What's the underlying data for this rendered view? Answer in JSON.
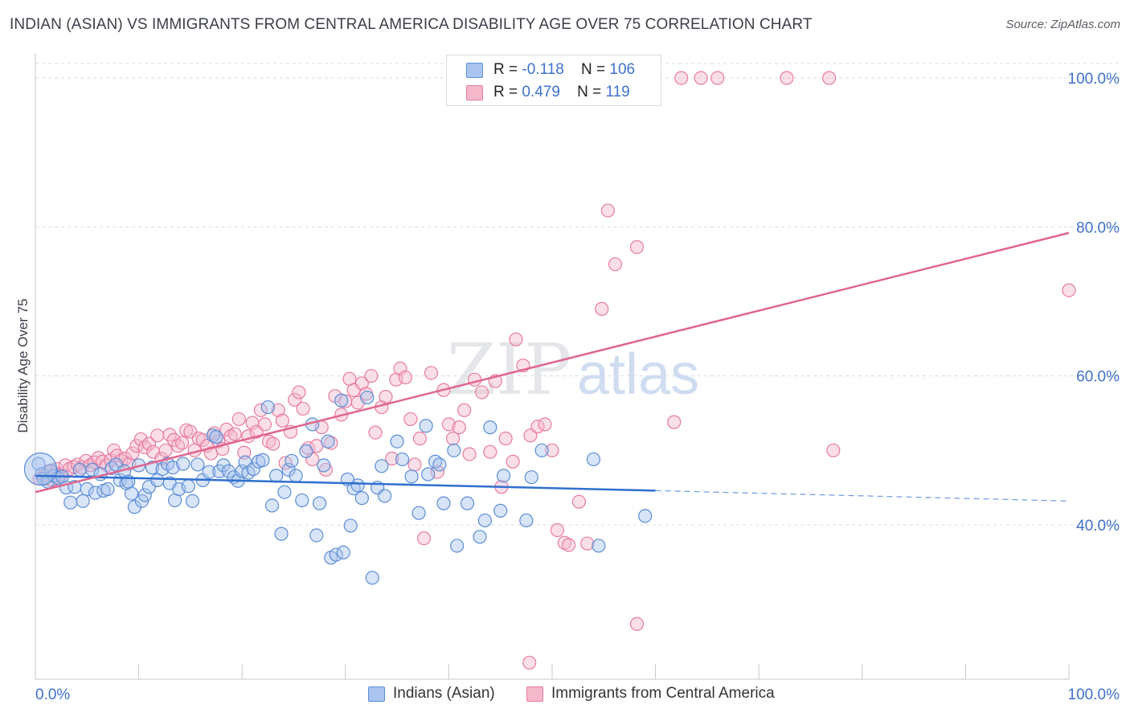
{
  "title": "INDIAN (ASIAN) VS IMMIGRANTS FROM CENTRAL AMERICA DISABILITY AGE OVER 75 CORRELATION CHART",
  "source": "Source: ZipAtlas.com",
  "watermark": {
    "zip": "ZIP",
    "atlas": "atlas"
  },
  "legend": {
    "rows": [
      {
        "r_label": "R =",
        "r_value": "-0.118",
        "n_label": "N =",
        "n_value": "106"
      },
      {
        "r_label": "R =",
        "r_value": "0.479",
        "n_label": "N =",
        "n_value": "119"
      }
    ]
  },
  "bottom_legend": [
    "Indians (Asian)",
    "Immigrants from Central America"
  ],
  "colors": {
    "blue_fill": "#a9c4ee",
    "blue_stroke": "#5b8ed6",
    "blue_line": "#2f6fcf",
    "pink_fill": "#f5b8cb",
    "pink_stroke": "#e87ba0",
    "pink_line": "#e0678f",
    "axis_label": "#3f72c9",
    "grid": "#d9dbe0"
  },
  "chart_data": {
    "type": "scatter",
    "title": "INDIAN (ASIAN) VS IMMIGRANTS FROM CENTRAL AMERICA DISABILITY AGE OVER 75 CORRELATION CHART",
    "xlabel": "",
    "ylabel": "Disability Age Over 75",
    "xlim": [
      0,
      100
    ],
    "ylim": [
      20,
      104
    ],
    "x_tick_labels": [
      "0.0%",
      "100.0%"
    ],
    "y_ticks": [
      40,
      60,
      80,
      100
    ],
    "y_tick_labels": [
      "40.0%",
      "60.0%",
      "80.0%",
      "100.0%"
    ],
    "grid": true,
    "legend_position": "top-center",
    "series": [
      {
        "name": "Indians (Asian)",
        "color": "#5b8ed6",
        "r": -0.118,
        "n": 106,
        "trend": {
          "x0": 0,
          "y0": 46.6,
          "x1": 60,
          "y1": 44.6,
          "dashed_to_x": 100,
          "dashed_y": 43.2
        },
        "points": [
          [
            0.3,
            48.2
          ],
          [
            0.6,
            46.8
          ],
          [
            0.8,
            46.2
          ],
          [
            1.2,
            45.8
          ],
          [
            1.5,
            47.3
          ],
          [
            1.8,
            46.6
          ],
          [
            2.2,
            46.3
          ],
          [
            2.6,
            46.5
          ],
          [
            3.0,
            45.0
          ],
          [
            3.4,
            43.0
          ],
          [
            3.8,
            45.1
          ],
          [
            4.3,
            47.4
          ],
          [
            4.6,
            43.2
          ],
          [
            5.0,
            44.8
          ],
          [
            5.5,
            47.4
          ],
          [
            5.8,
            44.3
          ],
          [
            6.3,
            46.8
          ],
          [
            6.6,
            44.6
          ],
          [
            7.0,
            44.8
          ],
          [
            7.4,
            47.6
          ],
          [
            7.8,
            48.1
          ],
          [
            8.2,
            46.0
          ],
          [
            8.6,
            47.2
          ],
          [
            8.8,
            45.6
          ],
          [
            9.0,
            45.8
          ],
          [
            9.3,
            44.2
          ],
          [
            9.6,
            42.4
          ],
          [
            10.0,
            48.0
          ],
          [
            10.3,
            43.2
          ],
          [
            10.6,
            44.0
          ],
          [
            11.0,
            45.1
          ],
          [
            11.3,
            47.7
          ],
          [
            11.8,
            46.0
          ],
          [
            12.3,
            47.5
          ],
          [
            12.8,
            48.2
          ],
          [
            13.0,
            45.6
          ],
          [
            13.3,
            47.7
          ],
          [
            13.5,
            43.3
          ],
          [
            13.9,
            44.8
          ],
          [
            14.3,
            48.2
          ],
          [
            14.8,
            45.2
          ],
          [
            15.2,
            43.2
          ],
          [
            15.7,
            48.1
          ],
          [
            16.2,
            46.0
          ],
          [
            16.8,
            47.1
          ],
          [
            17.2,
            52.0
          ],
          [
            17.5,
            51.8
          ],
          [
            17.8,
            47.2
          ],
          [
            18.2,
            48.0
          ],
          [
            18.7,
            47.2
          ],
          [
            19.2,
            46.4
          ],
          [
            19.6,
            45.9
          ],
          [
            20.0,
            47.2
          ],
          [
            20.3,
            48.4
          ],
          [
            20.6,
            47.0
          ],
          [
            21.1,
            47.5
          ],
          [
            21.6,
            48.5
          ],
          [
            22.0,
            48.7
          ],
          [
            22.5,
            55.8
          ],
          [
            22.9,
            42.6
          ],
          [
            23.3,
            46.6
          ],
          [
            23.8,
            38.8
          ],
          [
            24.1,
            44.4
          ],
          [
            24.5,
            47.4
          ],
          [
            24.8,
            48.6
          ],
          [
            25.2,
            46.6
          ],
          [
            25.8,
            43.3
          ],
          [
            26.2,
            49.9
          ],
          [
            26.8,
            53.5
          ],
          [
            27.2,
            38.6
          ],
          [
            27.5,
            42.9
          ],
          [
            27.9,
            48.0
          ],
          [
            28.3,
            51.2
          ],
          [
            28.6,
            35.6
          ],
          [
            29.1,
            36.0
          ],
          [
            29.6,
            56.7
          ],
          [
            29.8,
            36.3
          ],
          [
            30.2,
            46.1
          ],
          [
            30.5,
            39.9
          ],
          [
            30.8,
            44.9
          ],
          [
            31.2,
            45.3
          ],
          [
            31.6,
            43.6
          ],
          [
            32.1,
            57.1
          ],
          [
            32.6,
            32.9
          ],
          [
            33.1,
            45.0
          ],
          [
            33.5,
            47.9
          ],
          [
            33.8,
            43.9
          ],
          [
            35.0,
            51.2
          ],
          [
            35.5,
            48.8
          ],
          [
            36.4,
            46.5
          ],
          [
            37.1,
            41.6
          ],
          [
            37.8,
            53.3
          ],
          [
            38.0,
            46.8
          ],
          [
            38.7,
            48.5
          ],
          [
            39.1,
            48.1
          ],
          [
            39.5,
            42.9
          ],
          [
            40.5,
            50.0
          ],
          [
            40.8,
            37.2
          ],
          [
            41.8,
            42.9
          ],
          [
            43.0,
            38.4
          ],
          [
            43.5,
            40.6
          ],
          [
            44.0,
            53.1
          ],
          [
            45.0,
            41.9
          ],
          [
            45.3,
            46.6
          ],
          [
            47.5,
            40.6
          ],
          [
            48.0,
            46.4
          ],
          [
            49.0,
            50.0
          ],
          [
            54.0,
            48.8
          ],
          [
            54.5,
            37.2
          ],
          [
            59.0,
            41.2
          ]
        ]
      },
      {
        "name": "Immigrants from Central America",
        "color": "#e87ba0",
        "r": 0.479,
        "n": 119,
        "trend": {
          "x0": 0,
          "y0": 44.4,
          "x1": 100,
          "y1": 79.2
        },
        "points": [
          [
            0.4,
            46.2
          ],
          [
            0.9,
            46.7
          ],
          [
            1.3,
            47.2
          ],
          [
            1.7,
            46.0
          ],
          [
            2.1,
            47.5
          ],
          [
            2.5,
            46.8
          ],
          [
            2.9,
            48.0
          ],
          [
            3.3,
            47.5
          ],
          [
            3.7,
            47.8
          ],
          [
            4.1,
            48.1
          ],
          [
            4.5,
            47.7
          ],
          [
            4.9,
            48.6
          ],
          [
            5.3,
            48.0
          ],
          [
            5.7,
            48.4
          ],
          [
            6.1,
            49.0
          ],
          [
            6.5,
            48.5
          ],
          [
            6.9,
            48.0
          ],
          [
            7.3,
            48.7
          ],
          [
            7.6,
            50.0
          ],
          [
            7.9,
            49.3
          ],
          [
            8.3,
            48.6
          ],
          [
            8.7,
            48.9
          ],
          [
            9.1,
            48.2
          ],
          [
            9.4,
            49.6
          ],
          [
            9.8,
            50.6
          ],
          [
            10.2,
            51.5
          ],
          [
            10.6,
            50.4
          ],
          [
            11.0,
            50.9
          ],
          [
            11.4,
            49.8
          ],
          [
            11.8,
            52.0
          ],
          [
            12.2,
            48.9
          ],
          [
            12.6,
            50.0
          ],
          [
            13.0,
            52.1
          ],
          [
            13.4,
            51.4
          ],
          [
            13.8,
            50.6
          ],
          [
            14.2,
            51.0
          ],
          [
            14.6,
            52.7
          ],
          [
            15.0,
            52.5
          ],
          [
            15.4,
            50.0
          ],
          [
            15.8,
            51.6
          ],
          [
            16.2,
            51.4
          ],
          [
            16.6,
            50.6
          ],
          [
            17.0,
            49.6
          ],
          [
            17.3,
            52.3
          ],
          [
            17.7,
            51.2
          ],
          [
            18.1,
            50.2
          ],
          [
            18.5,
            52.8
          ],
          [
            18.9,
            51.9
          ],
          [
            19.3,
            52.2
          ],
          [
            19.7,
            54.2
          ],
          [
            20.2,
            49.7
          ],
          [
            20.6,
            51.9
          ],
          [
            21.0,
            53.7
          ],
          [
            21.4,
            52.5
          ],
          [
            21.8,
            55.4
          ],
          [
            22.2,
            53.5
          ],
          [
            22.6,
            51.2
          ],
          [
            23.0,
            50.9
          ],
          [
            23.5,
            55.4
          ],
          [
            23.9,
            54.0
          ],
          [
            24.2,
            48.3
          ],
          [
            24.7,
            52.5
          ],
          [
            25.1,
            56.8
          ],
          [
            25.5,
            57.8
          ],
          [
            25.9,
            55.6
          ],
          [
            26.4,
            50.3
          ],
          [
            26.8,
            48.8
          ],
          [
            27.2,
            50.6
          ],
          [
            27.7,
            53.1
          ],
          [
            28.1,
            47.4
          ],
          [
            28.6,
            51.0
          ],
          [
            29.0,
            57.3
          ],
          [
            29.6,
            54.8
          ],
          [
            30.0,
            56.6
          ],
          [
            30.4,
            59.6
          ],
          [
            30.8,
            58.1
          ],
          [
            31.2,
            56.4
          ],
          [
            31.6,
            59.0
          ],
          [
            32.0,
            57.6
          ],
          [
            32.5,
            60.0
          ],
          [
            32.9,
            52.4
          ],
          [
            33.5,
            55.8
          ],
          [
            33.9,
            57.2
          ],
          [
            34.5,
            48.9
          ],
          [
            34.9,
            59.5
          ],
          [
            35.3,
            61.0
          ],
          [
            35.8,
            59.8
          ],
          [
            36.3,
            54.2
          ],
          [
            36.7,
            48.1
          ],
          [
            37.2,
            51.6
          ],
          [
            37.6,
            38.2
          ],
          [
            38.3,
            60.4
          ],
          [
            38.9,
            47.1
          ],
          [
            39.5,
            58.1
          ],
          [
            40.0,
            53.5
          ],
          [
            40.4,
            51.6
          ],
          [
            41.0,
            53.1
          ],
          [
            41.5,
            55.4
          ],
          [
            42.0,
            49.5
          ],
          [
            42.5,
            59.5
          ],
          [
            43.2,
            57.8
          ],
          [
            44.0,
            49.8
          ],
          [
            44.5,
            59.3
          ],
          [
            45.1,
            45.1
          ],
          [
            45.5,
            51.6
          ],
          [
            46.2,
            48.5
          ],
          [
            46.5,
            64.9
          ],
          [
            47.2,
            61.4
          ],
          [
            47.9,
            52.0
          ],
          [
            48.6,
            53.2
          ],
          [
            49.3,
            53.5
          ],
          [
            50.0,
            50.0
          ],
          [
            50.5,
            39.3
          ],
          [
            51.2,
            37.6
          ],
          [
            51.6,
            37.3
          ],
          [
            52.6,
            43.1
          ],
          [
            53.4,
            37.5
          ],
          [
            54.8,
            69.0
          ],
          [
            56.1,
            75.0
          ],
          [
            58.2,
            77.3
          ],
          [
            59.5,
            100.0
          ],
          [
            62.5,
            100.0
          ],
          [
            64.4,
            100.0
          ],
          [
            66.0,
            100.0
          ],
          [
            72.7,
            100.0
          ],
          [
            76.8,
            100.0
          ],
          [
            55.4,
            82.2
          ],
          [
            61.8,
            53.8
          ],
          [
            77.2,
            50.0
          ],
          [
            100.0,
            71.5
          ],
          [
            58.2,
            26.7
          ],
          [
            47.8,
            21.5
          ]
        ]
      }
    ]
  }
}
